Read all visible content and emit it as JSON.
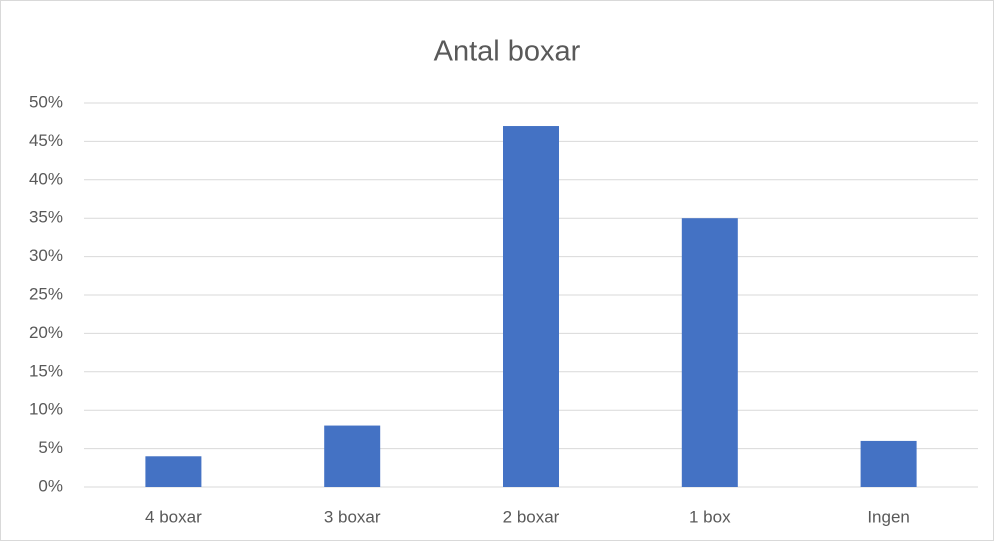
{
  "chart_data": {
    "type": "bar",
    "title": "Antal boxar",
    "categories": [
      "4 boxar",
      "3 boxar",
      "2 boxar",
      "1 box",
      "Ingen"
    ],
    "values": [
      4,
      8,
      47,
      35,
      6
    ],
    "color": "#4472c4",
    "ylim": [
      0,
      50
    ],
    "yticks": [
      {
        "value": 0,
        "label": "0%"
      },
      {
        "value": 5,
        "label": "5%"
      },
      {
        "value": 10,
        "label": "10%"
      },
      {
        "value": 15,
        "label": "15%"
      },
      {
        "value": 20,
        "label": "20%"
      },
      {
        "value": 25,
        "label": "25%"
      },
      {
        "value": 30,
        "label": "30%"
      },
      {
        "value": 35,
        "label": "35%"
      },
      {
        "value": 40,
        "label": "40%"
      },
      {
        "value": 45,
        "label": "45%"
      },
      {
        "value": 50,
        "label": "50%"
      }
    ],
    "grid": true
  }
}
